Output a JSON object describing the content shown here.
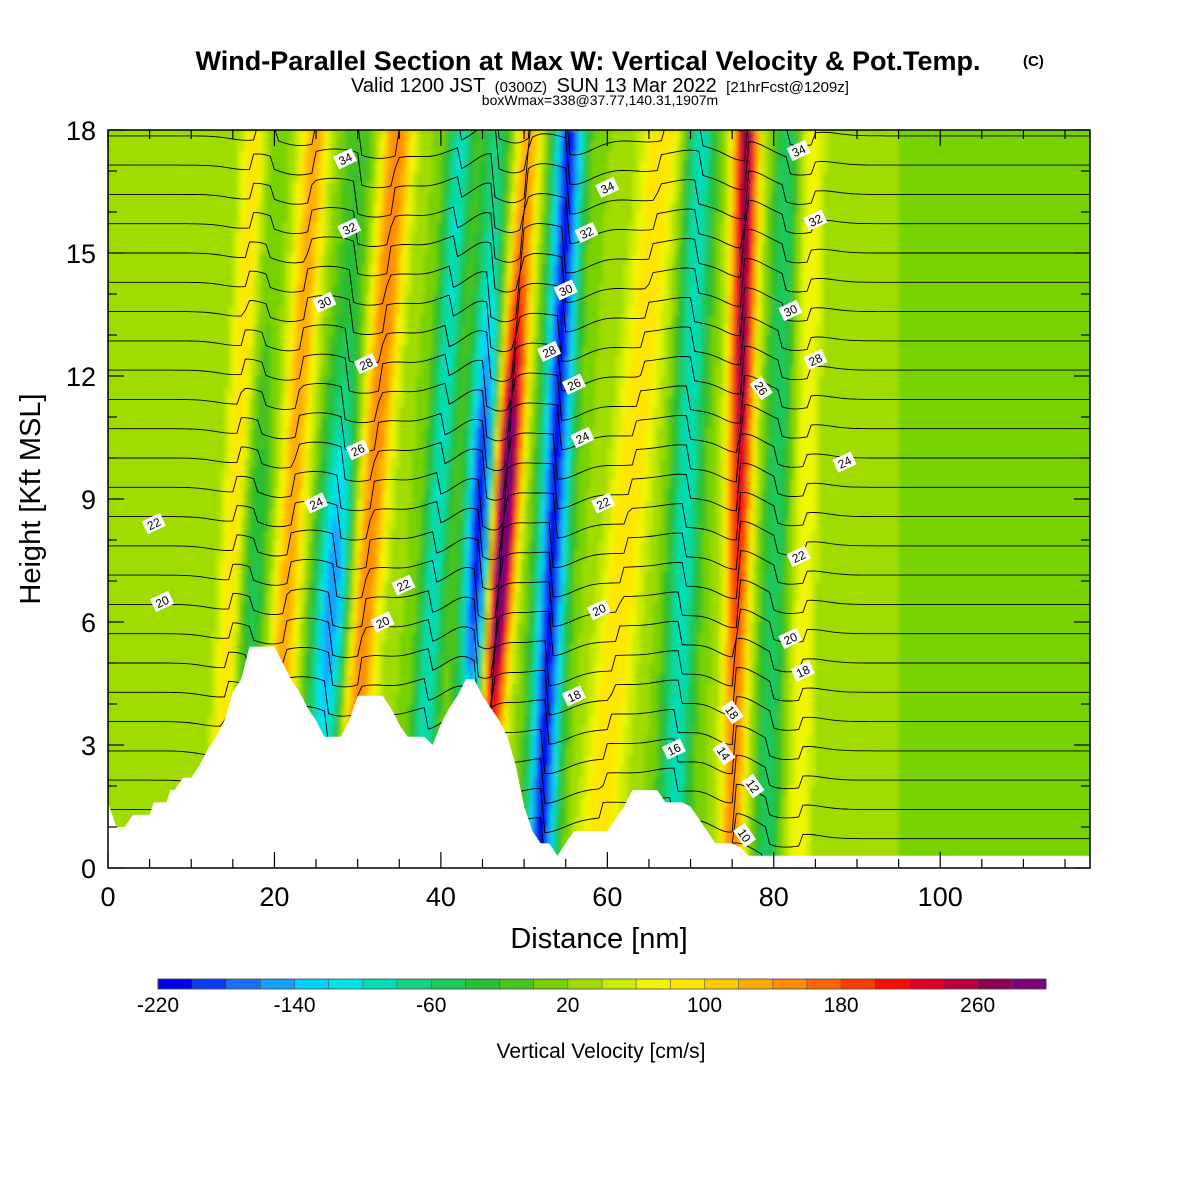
{
  "chart_data": {
    "type": "heatmap",
    "title": "Wind-Parallel Section at Max W: Vertical Velocity & Pot.Temp.",
    "title_mark": "(C)",
    "subtitle_main": "Valid 1200 JST",
    "subtitle_utc": "(0300Z)",
    "subtitle_date": "SUN 13 Mar 2022",
    "subtitle_fcst": "[21hrFcst@1209z]",
    "subtitle2": "boxWmax=338@37.77,140.31,1907m",
    "xlabel": "Distance [nm]",
    "ylabel": "Height [Kft MSL]",
    "xlim": [
      0,
      118
    ],
    "ylim": [
      0,
      18
    ],
    "x_ticks": [
      0,
      20,
      40,
      60,
      80,
      100
    ],
    "y_ticks": [
      0,
      3,
      6,
      9,
      12,
      15,
      18
    ],
    "colorbar": {
      "label": "Vertical Velocity [cm/s]",
      "min": -220,
      "max": 300,
      "step": 20,
      "tick_values": [
        -220,
        -140,
        -60,
        20,
        100,
        180,
        260
      ],
      "colors": [
        "#0000ee",
        "#0a3cf5",
        "#1e6eff",
        "#14a0ff",
        "#00d2ff",
        "#00e6e6",
        "#00dcb4",
        "#14d282",
        "#1ec85a",
        "#28be32",
        "#46c31e",
        "#78d200",
        "#a0dc00",
        "#c8eb00",
        "#f0f500",
        "#ffe600",
        "#ffc800",
        "#ffaa00",
        "#ff8c00",
        "#ff6400",
        "#ff3c00",
        "#ff0a00",
        "#dc0028",
        "#b4003c",
        "#8c0050",
        "#780078"
      ]
    },
    "terrain": [
      [
        0,
        1.6
      ],
      [
        1,
        1.0
      ],
      [
        2,
        1.0
      ],
      [
        3,
        1.3
      ],
      [
        5,
        1.3
      ],
      [
        5.5,
        1.6
      ],
      [
        6,
        1.6
      ],
      [
        7,
        1.6
      ],
      [
        7.5,
        1.9
      ],
      [
        8,
        1.9
      ],
      [
        9,
        2.2
      ],
      [
        10,
        2.2
      ],
      [
        11,
        2.5
      ],
      [
        12,
        2.9
      ],
      [
        13,
        3.2
      ],
      [
        14,
        3.6
      ],
      [
        15,
        4.3
      ],
      [
        16,
        4.6
      ],
      [
        17,
        5.4
      ],
      [
        19,
        5.4
      ],
      [
        20,
        5.4
      ],
      [
        21,
        5.0
      ],
      [
        22,
        4.6
      ],
      [
        23,
        4.3
      ],
      [
        24,
        3.9
      ],
      [
        25,
        3.6
      ],
      [
        26,
        3.2
      ],
      [
        27,
        3.2
      ],
      [
        28,
        3.2
      ],
      [
        29,
        3.6
      ],
      [
        30,
        4.2
      ],
      [
        31,
        4.2
      ],
      [
        32,
        4.2
      ],
      [
        33,
        4.2
      ],
      [
        34,
        3.9
      ],
      [
        35,
        3.5
      ],
      [
        36,
        3.2
      ],
      [
        37,
        3.2
      ],
      [
        38,
        3.2
      ],
      [
        39,
        3.0
      ],
      [
        40,
        3.5
      ],
      [
        41,
        3.9
      ],
      [
        42,
        4.2
      ],
      [
        43,
        4.6
      ],
      [
        44,
        4.6
      ],
      [
        45,
        4.2
      ],
      [
        46,
        3.9
      ],
      [
        47,
        3.6
      ],
      [
        48,
        3.2
      ],
      [
        49,
        2.5
      ],
      [
        50,
        1.5
      ],
      [
        51,
        0.9
      ],
      [
        52,
        0.6
      ],
      [
        53,
        0.6
      ],
      [
        54,
        0.3
      ],
      [
        55,
        0.6
      ],
      [
        56,
        0.9
      ],
      [
        58,
        0.9
      ],
      [
        60,
        0.9
      ],
      [
        61,
        1.2
      ],
      [
        62,
        1.5
      ],
      [
        63,
        1.9
      ],
      [
        64,
        1.9
      ],
      [
        65,
        1.9
      ],
      [
        66,
        1.9
      ],
      [
        67,
        1.6
      ],
      [
        68,
        1.6
      ],
      [
        69,
        1.6
      ],
      [
        70,
        1.5
      ],
      [
        71,
        1.2
      ],
      [
        72,
        0.9
      ],
      [
        73,
        0.6
      ],
      [
        74,
        0.6
      ],
      [
        75,
        0.6
      ],
      [
        76,
        0.5
      ],
      [
        77,
        0.3
      ],
      [
        80,
        0.3
      ],
      [
        90,
        0.3
      ],
      [
        100,
        0.3
      ],
      [
        110,
        0.3
      ],
      [
        118,
        0.3
      ]
    ],
    "updraft_bands": [
      {
        "x0": 14,
        "slope": 0.25,
        "width": 1.5,
        "amp": 80
      },
      {
        "x0": 21,
        "slope": 0.3,
        "width": 1.8,
        "amp": 110
      },
      {
        "x0": 30,
        "slope": 0.35,
        "width": 2.0,
        "amp": 140
      },
      {
        "x0": 46,
        "slope": 0.33,
        "width": 1.6,
        "amp": 300
      },
      {
        "x0": 59,
        "slope": 0.45,
        "width": 2.5,
        "amp": 80
      },
      {
        "x0": 75,
        "slope": 0.1,
        "width": 1.5,
        "amp": 250
      },
      {
        "x0": 83,
        "slope": 0.1,
        "width": 1.5,
        "amp": 60
      }
    ],
    "downdraft_bands": [
      {
        "x0": 17,
        "slope": 0.25,
        "width": 1.8,
        "amp": -60
      },
      {
        "x0": 26,
        "slope": 0.3,
        "width": 2.2,
        "amp": -160
      },
      {
        "x0": 38,
        "slope": 0.3,
        "width": 1.5,
        "amp": -120
      },
      {
        "x0": 44,
        "slope": 0.2,
        "width": 1.8,
        "amp": -220
      },
      {
        "x0": 52,
        "slope": 0.2,
        "width": 1.8,
        "amp": -230
      },
      {
        "x0": 68,
        "slope": 0.2,
        "width": 1.8,
        "amp": -120
      },
      {
        "x0": 79,
        "slope": 0.15,
        "width": 1.5,
        "amp": -80
      }
    ],
    "isentrope_labels": [
      {
        "value": "34",
        "x": 28.5,
        "y": 17.3
      },
      {
        "value": "34",
        "x": 60.0,
        "y": 16.6
      },
      {
        "value": "34",
        "x": 83.0,
        "y": 17.5
      },
      {
        "value": "32",
        "x": 29.0,
        "y": 15.6
      },
      {
        "value": "32",
        "x": 57.5,
        "y": 15.5
      },
      {
        "value": "32",
        "x": 85.0,
        "y": 15.8
      },
      {
        "value": "30",
        "x": 26.0,
        "y": 13.8
      },
      {
        "value": "30",
        "x": 55.0,
        "y": 14.1
      },
      {
        "value": "30",
        "x": 82.0,
        "y": 13.6
      },
      {
        "value": "28",
        "x": 31.0,
        "y": 12.3
      },
      {
        "value": "28",
        "x": 53.0,
        "y": 12.6
      },
      {
        "value": "28",
        "x": 85.0,
        "y": 12.4
      },
      {
        "value": "26",
        "x": 30.0,
        "y": 10.2
      },
      {
        "value": "26",
        "x": 56.0,
        "y": 11.8
      },
      {
        "value": "26",
        "x": 78.5,
        "y": 11.7
      },
      {
        "value": "24",
        "x": 25.0,
        "y": 8.9
      },
      {
        "value": "24",
        "x": 57.0,
        "y": 10.5
      },
      {
        "value": "24",
        "x": 88.5,
        "y": 9.9
      },
      {
        "value": "22",
        "x": 5.5,
        "y": 8.4
      },
      {
        "value": "22",
        "x": 35.5,
        "y": 6.9
      },
      {
        "value": "22",
        "x": 59.5,
        "y": 8.9
      },
      {
        "value": "22",
        "x": 83.0,
        "y": 7.6
      },
      {
        "value": "20",
        "x": 6.5,
        "y": 6.5
      },
      {
        "value": "20",
        "x": 33.0,
        "y": 6.0
      },
      {
        "value": "20",
        "x": 59.0,
        "y": 6.3
      },
      {
        "value": "20",
        "x": 82.0,
        "y": 5.6
      },
      {
        "value": "18",
        "x": 56.0,
        "y": 4.2
      },
      {
        "value": "18",
        "x": 83.5,
        "y": 4.8
      },
      {
        "value": "18",
        "x": 75.0,
        "y": 3.8
      },
      {
        "value": "16",
        "x": 68.0,
        "y": 2.9
      },
      {
        "value": "14",
        "x": 74.0,
        "y": 2.8
      },
      {
        "value": "12",
        "x": 77.5,
        "y": 2.0
      },
      {
        "value": "10",
        "x": 76.5,
        "y": 0.8
      }
    ]
  }
}
